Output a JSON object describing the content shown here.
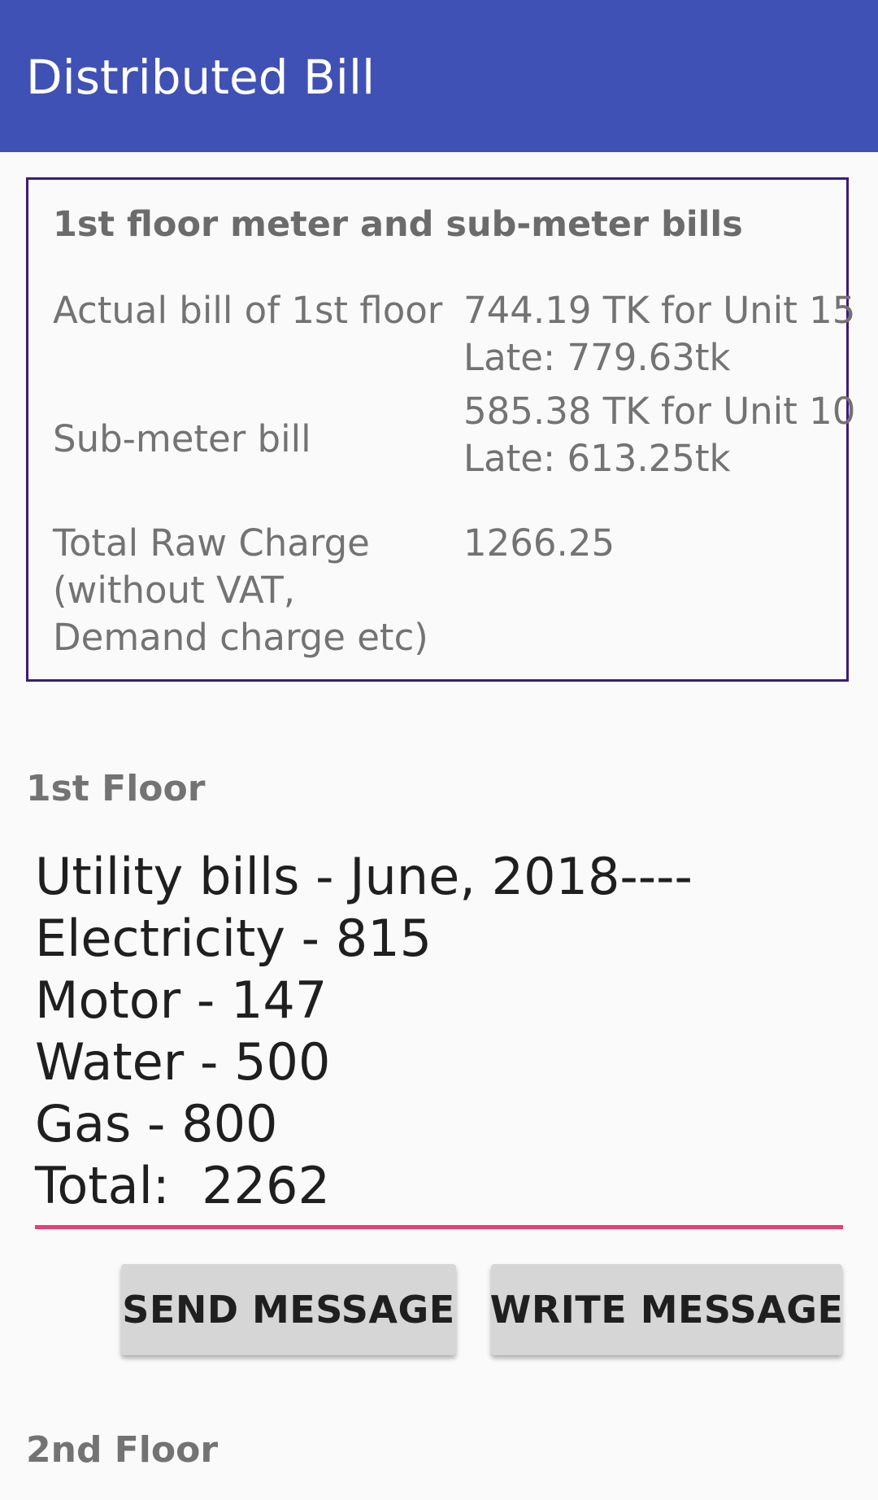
{
  "appbar": {
    "title": "Distributed Bill",
    "color": "#3f51b5"
  },
  "summary": {
    "heading": "1st floor meter and sub-meter bills",
    "rows": [
      {
        "label": "Actual bill of 1st floor",
        "value": "744.19 TK for Unit 15\nLate: 779.63tk"
      },
      {
        "label": "Sub-meter bill",
        "value": "585.38 TK for Unit 10\nLate: 613.25tk"
      },
      {
        "label": "Total Raw Charge\n(without VAT,\nDemand charge etc)",
        "value": "1266.25"
      }
    ]
  },
  "first_floor": {
    "title": "1st Floor",
    "message": "Utility bills - June, 2018----\nElectricity - 815\nMotor - 147\nWater - 500\nGas - 800\nTotal:  2262",
    "send_label": "SEND MESSAGE",
    "write_label": "WRITE MESSAGE",
    "underline_color": "#e83e72"
  },
  "second_floor": {
    "title": "2nd Floor"
  }
}
